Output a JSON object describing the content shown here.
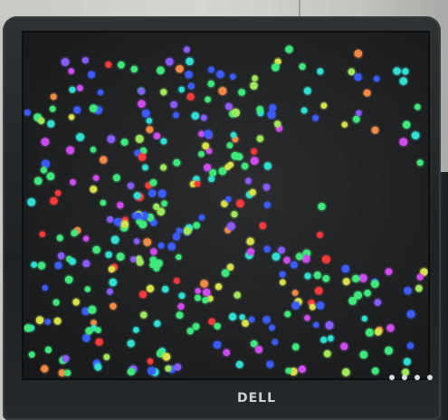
{
  "logo": {
    "text": "DELL"
  },
  "dot_colors": {
    "green": "#3fe87a",
    "cyan": "#2fe0d2",
    "blue": "#3b5cff",
    "violet": "#8a5cff",
    "magenta": "#d04cf0",
    "red": "#ff3a3a",
    "orange": "#f28a45",
    "yellow": "#d8e04a",
    "lime": "#9ee85a"
  }
}
